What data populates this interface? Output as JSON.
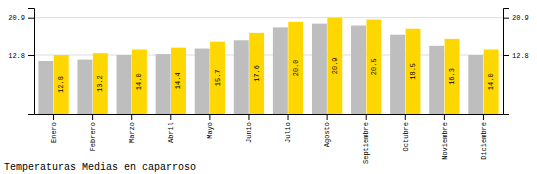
{
  "chart_data": {
    "type": "bar",
    "title": "Temperaturas Medias en caparroso",
    "categories": [
      "Enero",
      "Febrero",
      "Marzo",
      "Abril",
      "Mayo",
      "Junio",
      "Julio",
      "Agosto",
      "Septiembre",
      "Octubre",
      "Noviembre",
      "Diciembre"
    ],
    "series": [
      {
        "color": "#BEBEBE",
        "values": [
          11.5,
          11.8,
          12.8,
          13.0,
          14.2,
          16.0,
          18.8,
          19.6,
          19.2,
          17.2,
          14.8,
          12.8
        ]
      },
      {
        "color": "#FFD700",
        "values": [
          12.8,
          13.2,
          14.0,
          14.4,
          15.7,
          17.6,
          20.0,
          20.9,
          20.5,
          18.5,
          16.3,
          14.0
        ],
        "value_labels": [
          "12.8",
          "13.2",
          "14.0",
          "14.4",
          "15.7",
          "17.6",
          "20.0",
          "20.9",
          "20.5",
          "18.5",
          "16.3",
          "14.0"
        ],
        "data_labels": true
      }
    ],
    "ylim": [
      0,
      23.0
    ],
    "yticks": [
      12.8,
      20.9
    ],
    "y2lim": [
      0,
      23.0
    ],
    "y2ticks": [
      12.8,
      20.9
    ],
    "grid": true
  }
}
